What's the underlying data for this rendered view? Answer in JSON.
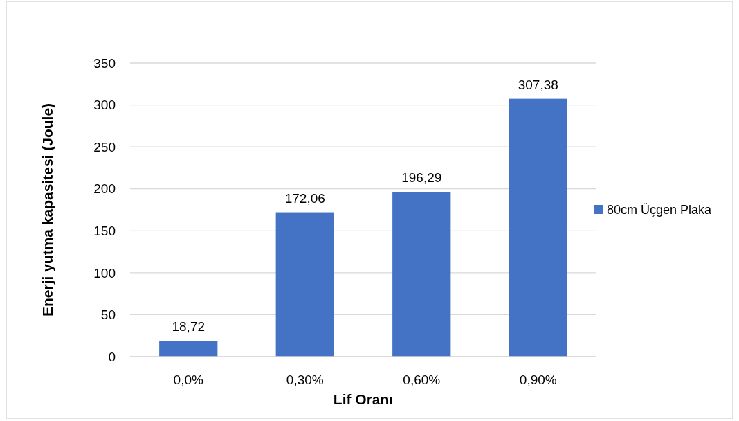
{
  "chart_data": {
    "type": "bar",
    "categories": [
      "0,0%",
      "0,30%",
      "0,60%",
      "0,90%"
    ],
    "series": [
      {
        "name": "80cm Üçgen Plaka",
        "color": "#4472c4",
        "values": [
          18.72,
          172.06,
          196.29,
          307.38
        ],
        "value_labels": [
          "18,72",
          "172,06",
          "196,29",
          "307,38"
        ]
      }
    ],
    "xlabel": "Lif Oranı",
    "ylabel": "Enerji yutma kapasitesi (Joule)",
    "ylim": [
      0,
      350
    ],
    "yticks": [
      0,
      50,
      100,
      150,
      200,
      250,
      300,
      350
    ],
    "grid": "y",
    "legend": "right"
  }
}
